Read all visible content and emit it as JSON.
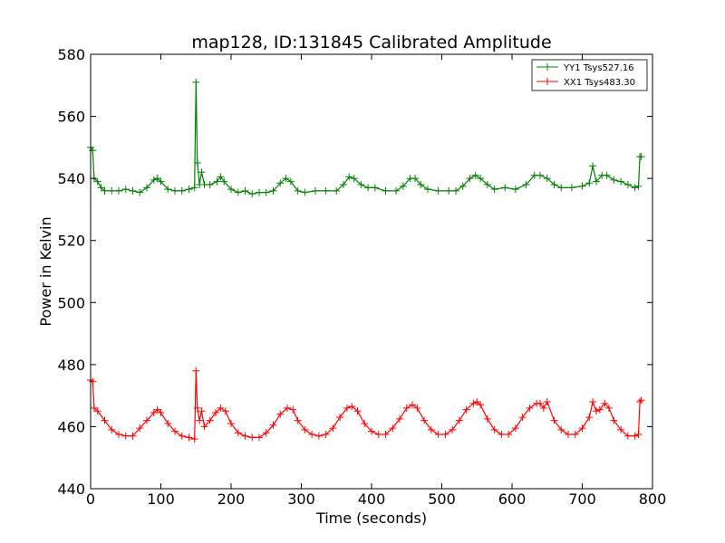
{
  "chart_data": {
    "type": "line",
    "title": "map128, ID:131845 Calibrated Amplitude",
    "xlabel": "Time (seconds)",
    "ylabel": "Power in Kelvin",
    "xlim": [
      0,
      800
    ],
    "ylim": [
      440,
      580
    ],
    "xticks": [
      "0",
      "100",
      "200",
      "300",
      "400",
      "500",
      "600",
      "700",
      "800"
    ],
    "yticks": [
      "440",
      "460",
      "480",
      "500",
      "520",
      "540",
      "560",
      "580"
    ],
    "grid": false,
    "legend_position": "top-right",
    "marker": "plus",
    "series": [
      {
        "name": "YY1 Tsys527.16",
        "color": "#008000",
        "points": [
          [
            0,
            550
          ],
          [
            3,
            549
          ],
          [
            5,
            540
          ],
          [
            10,
            539
          ],
          [
            15,
            537
          ],
          [
            20,
            536
          ],
          [
            30,
            536
          ],
          [
            40,
            536
          ],
          [
            50,
            536.5
          ],
          [
            60,
            536
          ],
          [
            70,
            535.5
          ],
          [
            80,
            537
          ],
          [
            90,
            539.5
          ],
          [
            95,
            540
          ],
          [
            100,
            539
          ],
          [
            110,
            536.5
          ],
          [
            120,
            536
          ],
          [
            130,
            536
          ],
          [
            140,
            536.5
          ],
          [
            148,
            537
          ],
          [
            150,
            571
          ],
          [
            152,
            545
          ],
          [
            155,
            538
          ],
          [
            158,
            542
          ],
          [
            162,
            538
          ],
          [
            170,
            538
          ],
          [
            180,
            539
          ],
          [
            185,
            540.5
          ],
          [
            190,
            539
          ],
          [
            200,
            536.5
          ],
          [
            210,
            535.5
          ],
          [
            220,
            536
          ],
          [
            230,
            535
          ],
          [
            240,
            535.5
          ],
          [
            250,
            535.5
          ],
          [
            260,
            536
          ],
          [
            270,
            538.5
          ],
          [
            278,
            540
          ],
          [
            285,
            539
          ],
          [
            295,
            536
          ],
          [
            305,
            535.5
          ],
          [
            320,
            536
          ],
          [
            335,
            536
          ],
          [
            350,
            536
          ],
          [
            360,
            538
          ],
          [
            368,
            540.5
          ],
          [
            375,
            540
          ],
          [
            385,
            538
          ],
          [
            395,
            537
          ],
          [
            405,
            537
          ],
          [
            420,
            536
          ],
          [
            435,
            536
          ],
          [
            445,
            537.5
          ],
          [
            455,
            540
          ],
          [
            462,
            540
          ],
          [
            470,
            538
          ],
          [
            480,
            536.5
          ],
          [
            495,
            536
          ],
          [
            510,
            536
          ],
          [
            520,
            536
          ],
          [
            530,
            537.5
          ],
          [
            540,
            540
          ],
          [
            548,
            541
          ],
          [
            555,
            540
          ],
          [
            565,
            538
          ],
          [
            575,
            536.5
          ],
          [
            590,
            537
          ],
          [
            605,
            536.5
          ],
          [
            620,
            538
          ],
          [
            632,
            541
          ],
          [
            640,
            541
          ],
          [
            650,
            540
          ],
          [
            660,
            538
          ],
          [
            670,
            537
          ],
          [
            685,
            537
          ],
          [
            700,
            537.5
          ],
          [
            710,
            538.5
          ],
          [
            715,
            544
          ],
          [
            720,
            539
          ],
          [
            728,
            541
          ],
          [
            735,
            541
          ],
          [
            745,
            539.5
          ],
          [
            755,
            539
          ],
          [
            765,
            538
          ],
          [
            775,
            537
          ],
          [
            780,
            537.5
          ],
          [
            782,
            547
          ],
          [
            784,
            547
          ]
        ]
      },
      {
        "name": "XX1 Tsys483.30",
        "color": "#ff0000",
        "points": [
          [
            0,
            475
          ],
          [
            3,
            474.5
          ],
          [
            5,
            466
          ],
          [
            10,
            465
          ],
          [
            20,
            462
          ],
          [
            30,
            459
          ],
          [
            40,
            457.5
          ],
          [
            50,
            457
          ],
          [
            60,
            457
          ],
          [
            70,
            459.5
          ],
          [
            80,
            462
          ],
          [
            90,
            464.5
          ],
          [
            95,
            465.5
          ],
          [
            100,
            464.5
          ],
          [
            110,
            461
          ],
          [
            120,
            458.5
          ],
          [
            130,
            457
          ],
          [
            140,
            456.5
          ],
          [
            148,
            456
          ],
          [
            150,
            478
          ],
          [
            152,
            466
          ],
          [
            155,
            462
          ],
          [
            158,
            465
          ],
          [
            162,
            460
          ],
          [
            170,
            462
          ],
          [
            178,
            464.5
          ],
          [
            185,
            466
          ],
          [
            192,
            465
          ],
          [
            200,
            461
          ],
          [
            210,
            458
          ],
          [
            220,
            457
          ],
          [
            230,
            456.5
          ],
          [
            240,
            456.5
          ],
          [
            250,
            458
          ],
          [
            260,
            460.5
          ],
          [
            270,
            464
          ],
          [
            280,
            466
          ],
          [
            288,
            465.5
          ],
          [
            295,
            462
          ],
          [
            305,
            459
          ],
          [
            315,
            457.5
          ],
          [
            325,
            457
          ],
          [
            335,
            457.5
          ],
          [
            345,
            459.5
          ],
          [
            355,
            463
          ],
          [
            365,
            466
          ],
          [
            372,
            466.5
          ],
          [
            380,
            465
          ],
          [
            390,
            461
          ],
          [
            400,
            458.5
          ],
          [
            410,
            457.5
          ],
          [
            420,
            457.5
          ],
          [
            430,
            459.5
          ],
          [
            440,
            462.5
          ],
          [
            450,
            466
          ],
          [
            458,
            467
          ],
          [
            465,
            466
          ],
          [
            475,
            462
          ],
          [
            485,
            459
          ],
          [
            495,
            457.5
          ],
          [
            505,
            457.5
          ],
          [
            515,
            459
          ],
          [
            525,
            462
          ],
          [
            535,
            465.5
          ],
          [
            545,
            467.5
          ],
          [
            550,
            468
          ],
          [
            555,
            467
          ],
          [
            565,
            462.5
          ],
          [
            575,
            459
          ],
          [
            585,
            457.5
          ],
          [
            595,
            457.5
          ],
          [
            605,
            459.5
          ],
          [
            615,
            463
          ],
          [
            625,
            466
          ],
          [
            635,
            467.5
          ],
          [
            640,
            467.5
          ],
          [
            645,
            466
          ],
          [
            650,
            468
          ],
          [
            660,
            462
          ],
          [
            670,
            459
          ],
          [
            680,
            457.5
          ],
          [
            690,
            457.5
          ],
          [
            700,
            459.5
          ],
          [
            710,
            463
          ],
          [
            715,
            468
          ],
          [
            720,
            465
          ],
          [
            725,
            465.5
          ],
          [
            732,
            467.5
          ],
          [
            738,
            466
          ],
          [
            745,
            462
          ],
          [
            755,
            459
          ],
          [
            765,
            457
          ],
          [
            775,
            457
          ],
          [
            780,
            457.5
          ],
          [
            782,
            468
          ],
          [
            784,
            468.5
          ]
        ]
      }
    ]
  }
}
